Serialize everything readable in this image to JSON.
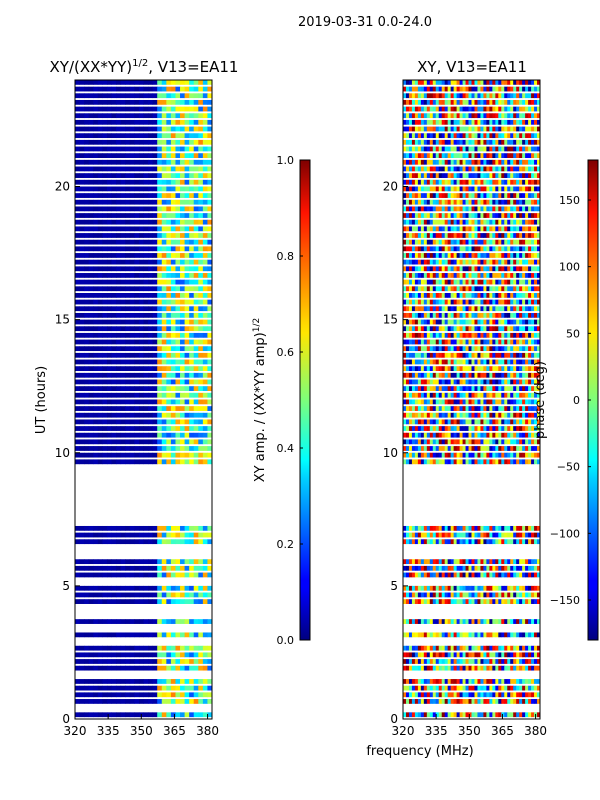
{
  "chart_data": {
    "suptitle": "2019-03-31 0.0-24.0",
    "shared_xlabel": "frequency (MHz)",
    "panels": [
      {
        "type": "heatmap",
        "title": "XY/(XX*YY)",
        "title_sup": "1/2",
        "title_tail": ", V13=EA11",
        "ylabel": "UT (hours)",
        "xlim": [
          320,
          382
        ],
        "ylim": [
          0,
          24
        ],
        "xticks": [
          320,
          335,
          350,
          365,
          380
        ],
        "yticks": [
          0,
          5,
          10,
          15,
          20
        ],
        "x_ticklabels": [
          "320",
          "335",
          "350",
          "365",
          "380"
        ],
        "y_ticklabels": [
          "0",
          "5",
          "10",
          "15",
          "20"
        ],
        "colormap": "jet",
        "colorbar": {
          "label": "XY amp. / (XX*YY amp)",
          "label_sup": "1/2",
          "range": [
            0.0,
            1.0
          ],
          "ticks": [
            0.0,
            0.2,
            0.4,
            0.6,
            0.8,
            1.0
          ],
          "ticklabels": [
            "0.0",
            "0.2",
            "0.4",
            "0.6",
            "0.8",
            "1.0"
          ]
        }
      },
      {
        "type": "heatmap",
        "title": "XY, V13=EA11",
        "xlim": [
          320,
          382
        ],
        "ylim": [
          0,
          24
        ],
        "xticks": [
          320,
          335,
          350,
          365,
          380
        ],
        "yticks": [
          0,
          5,
          10,
          15,
          20
        ],
        "x_ticklabels": [
          "320",
          "335",
          "350",
          "365",
          "380"
        ],
        "y_ticklabels": [
          "0",
          "5",
          "10",
          "15",
          "20"
        ],
        "colormap": "jet",
        "colorbar": {
          "label": "phase (deg)",
          "range": [
            -180,
            180
          ],
          "ticks": [
            -150,
            -100,
            -50,
            0,
            50,
            100,
            150
          ],
          "ticklabels": [
            "−150",
            "−100",
            "−50",
            "0",
            "50",
            "100",
            "150"
          ]
        }
      }
    ],
    "data_gaps_hours": [
      [
        8.5,
        9.6
      ],
      [
        7.2,
        7.7
      ],
      [
        6.1,
        6.5
      ]
    ],
    "active_band_mhz": [
      358,
      382
    ]
  }
}
